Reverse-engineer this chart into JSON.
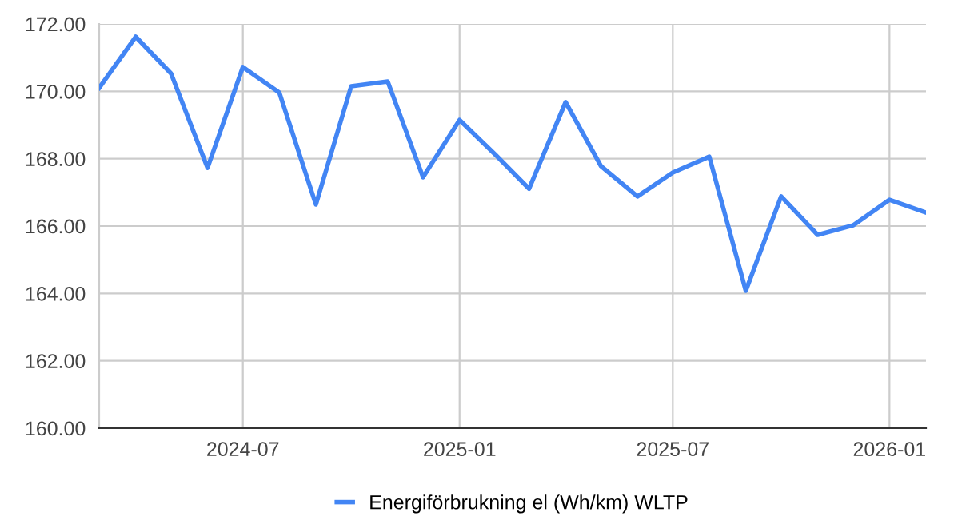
{
  "chart_data": {
    "type": "line",
    "x": [
      "2024-03",
      "2024-04",
      "2024-05",
      "2024-06",
      "2024-07",
      "2024-08",
      "2024-09",
      "2024-10",
      "2024-11",
      "2024-12",
      "2025-01",
      "2025-02",
      "2025-03",
      "2025-04",
      "2025-05",
      "2025-06",
      "2025-07",
      "2025-08",
      "2025-09",
      "2025-10",
      "2025-11",
      "2025-12",
      "2026-01",
      "2026-02"
    ],
    "series": [
      {
        "name": "Energiförbrukning el (Wh/km) WLTP",
        "color": "#4285f4",
        "values": [
          170.1,
          171.62,
          170.53,
          167.73,
          170.72,
          169.96,
          166.64,
          170.15,
          170.29,
          167.45,
          169.15,
          168.1,
          167.11,
          169.68,
          167.78,
          166.88,
          167.59,
          168.06,
          164.08,
          166.88,
          165.74,
          166.02,
          166.78,
          166.4
        ]
      }
    ],
    "xlim": [
      "2024-03",
      "2026-02"
    ],
    "xticks": [
      {
        "value": "2024-07",
        "label": "2024-07"
      },
      {
        "value": "2025-01",
        "label": "2025-01"
      },
      {
        "value": "2025-07",
        "label": "2025-07"
      },
      {
        "value": "2026-01",
        "label": "2026-01"
      }
    ],
    "ylim": [
      160,
      172
    ],
    "yticks": [
      {
        "value": 160,
        "label": "160.00"
      },
      {
        "value": 162,
        "label": "162.00"
      },
      {
        "value": 164,
        "label": "164.00"
      },
      {
        "value": 166,
        "label": "166.00"
      },
      {
        "value": 168,
        "label": "168.00"
      },
      {
        "value": 170,
        "label": "170.00"
      },
      {
        "value": 172,
        "label": "172.00"
      }
    ],
    "grid": true,
    "legend": "bottom",
    "marker": "none",
    "line_style": "solid"
  }
}
